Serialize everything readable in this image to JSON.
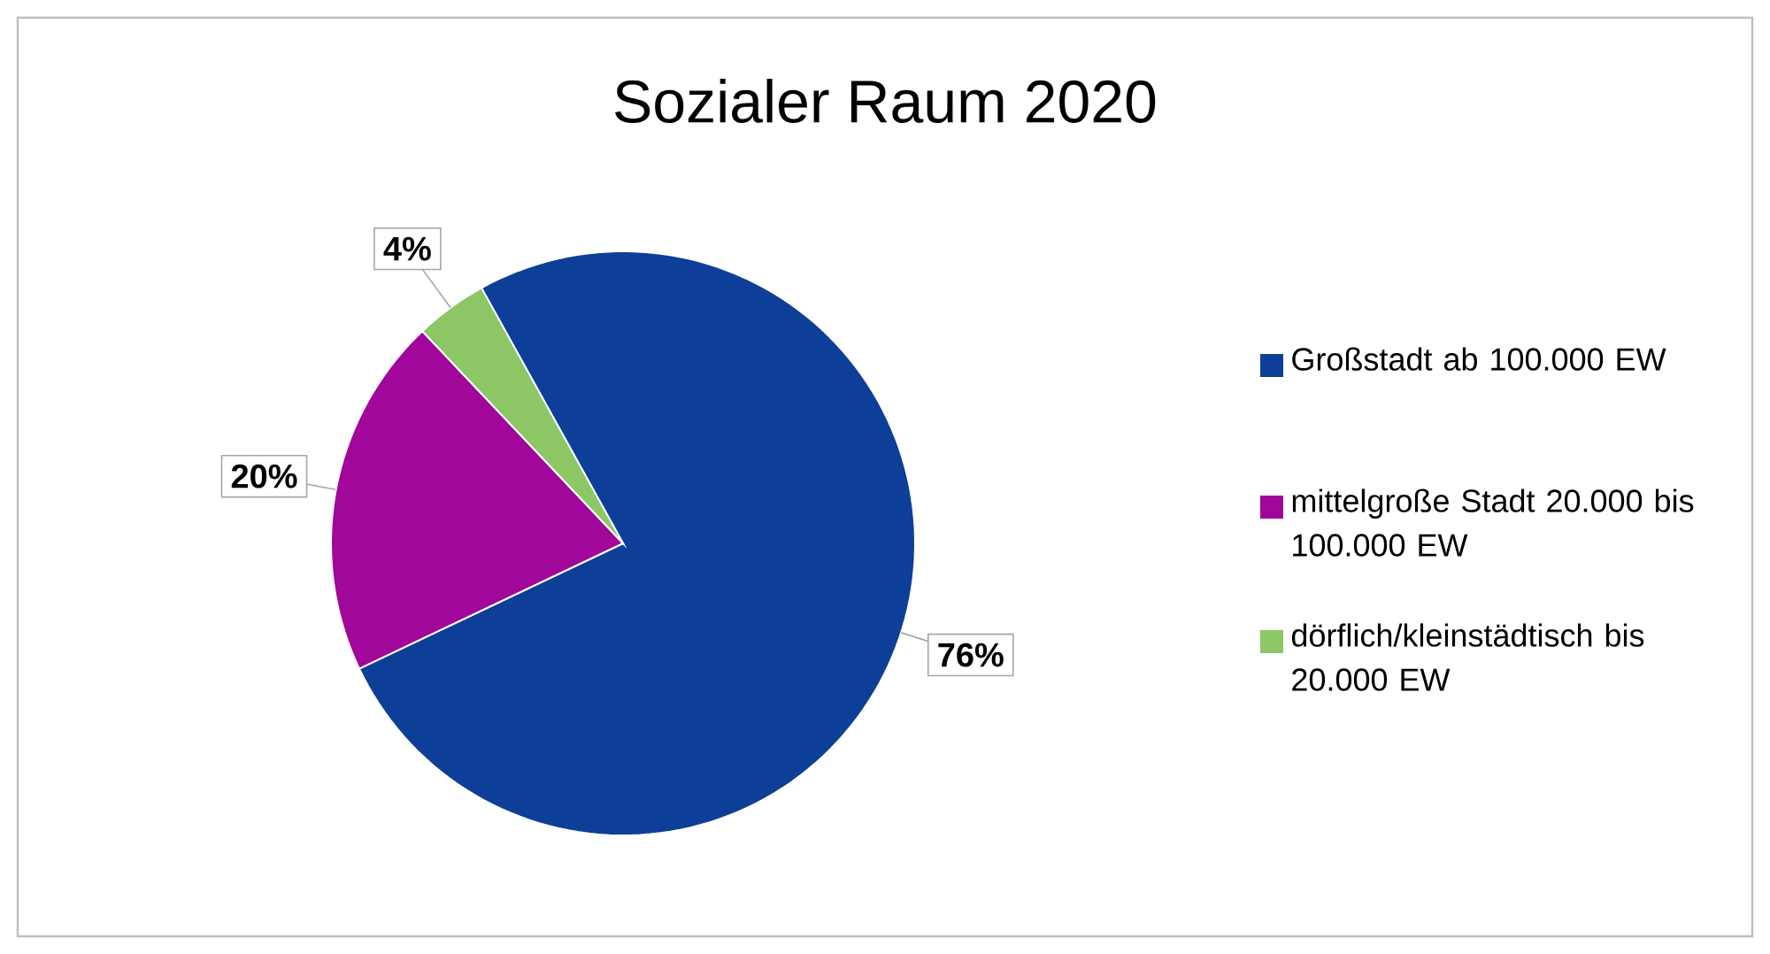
{
  "chart_data": {
    "type": "pie",
    "title": "Sozialer Raum 2020",
    "categories": [
      "Großstadt ab 100.000 EW",
      "mittelgroße Stadt 20.000 bis 100.000 EW",
      "dörflich/kleinstädtisch bis 20.000 EW"
    ],
    "values": [
      76,
      20,
      4
    ],
    "colors": [
      "#0d3f99",
      "#a0079a",
      "#8cc665"
    ],
    "value_labels": [
      "76%",
      "20%",
      "4%"
    ],
    "legend": "right"
  }
}
